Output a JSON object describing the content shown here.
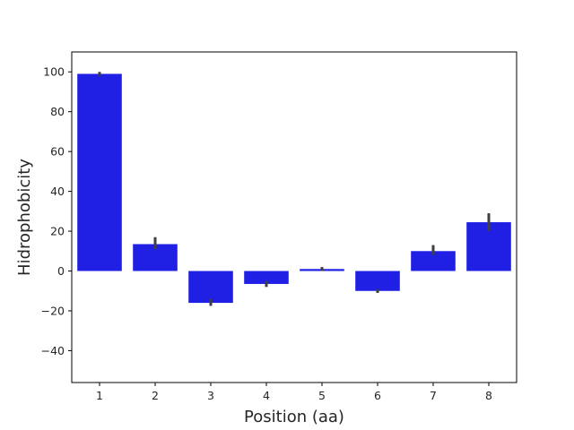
{
  "chart_data": {
    "type": "bar",
    "title": "",
    "xlabel": "Position (aa)",
    "ylabel": "Hidrophobicity",
    "categories": [
      "1",
      "2",
      "3",
      "4",
      "5",
      "6",
      "7",
      "8"
    ],
    "values": [
      99,
      13.5,
      -16,
      -6.5,
      1,
      -10,
      10,
      24.5
    ],
    "error_low": [
      98,
      11,
      -17.5,
      -8,
      0,
      -11,
      8,
      20
    ],
    "error_high": [
      100,
      17,
      -14,
      -5,
      2,
      -9,
      13,
      29
    ],
    "yticks": [
      -40,
      -20,
      0,
      20,
      40,
      60,
      80,
      100
    ],
    "ylim": [
      -56,
      110
    ],
    "grid": false,
    "legend": false,
    "bar_color": "#2020e5",
    "error_color": "#3f3f3f",
    "axis_color": "#000000"
  }
}
